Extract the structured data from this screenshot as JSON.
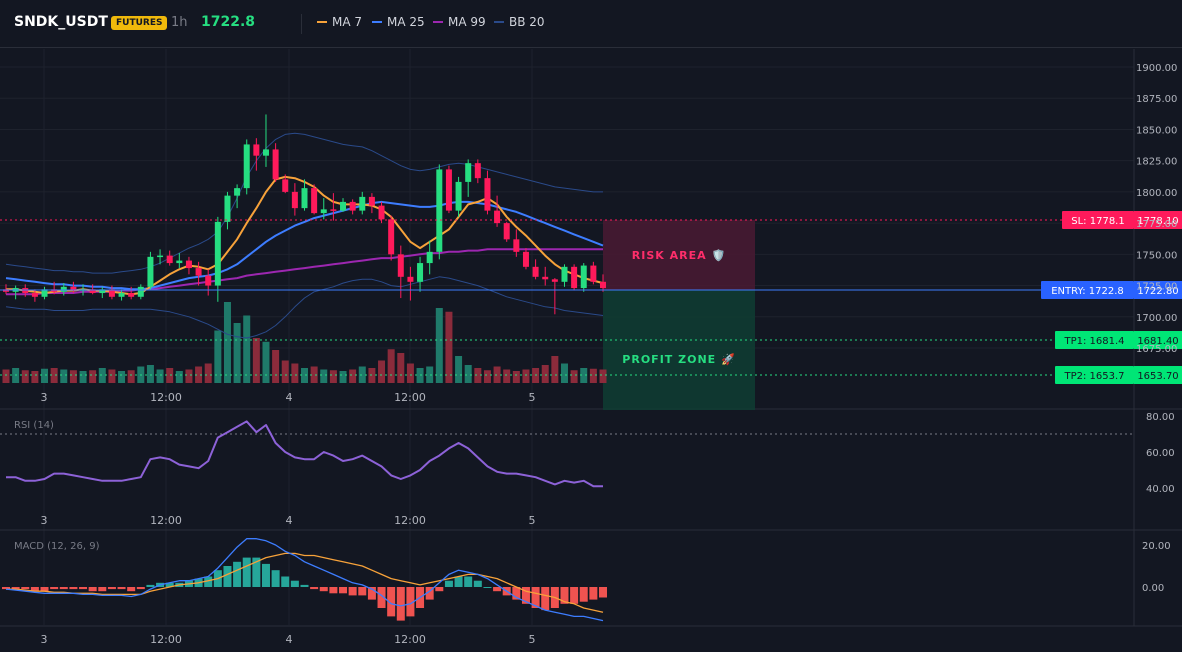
{
  "header": {
    "symbol": "SNDK_USDT",
    "badge": "FUTURES",
    "timeframe": "1h",
    "last_price": "1722.8",
    "legend": [
      {
        "label": "MA 7",
        "color": "#f7a23a"
      },
      {
        "label": "MA 25",
        "color": "#3d7dff"
      },
      {
        "label": "MA 99",
        "color": "#9c27b0"
      },
      {
        "label": "BB 20",
        "color": "#2a4a8a"
      }
    ]
  },
  "colors": {
    "up": "#26de81",
    "down": "#ff1a5b",
    "vol_up": "#1f7a6a",
    "vol_down": "#8b2b3b",
    "bb": "#2a4a8a",
    "rsi": "#8d62d8",
    "macd": "#3d7dff",
    "signal": "#f7a23a",
    "hist_up": "#26a69a",
    "hist_down": "#ef5350"
  },
  "chart_data": [
    {
      "type": "candlestick",
      "price_axis": {
        "ticks": [
          "1900.00",
          "1875.00",
          "1850.00",
          "1825.00",
          "1800.00",
          "1775.00",
          "1750.00",
          "1725.00",
          "1700.00",
          "1675.00"
        ],
        "range": [
          1655,
          1910
        ]
      },
      "x_labels": [
        "3",
        "12:00",
        "4",
        "12:00",
        "5"
      ],
      "candles": [
        [
          1722,
          1726,
          1718,
          1720
        ],
        [
          1720,
          1725,
          1714,
          1723
        ],
        [
          1723,
          1726,
          1716,
          1719
        ],
        [
          1719,
          1722,
          1712,
          1716
        ],
        [
          1716,
          1724,
          1714,
          1722
        ],
        [
          1722,
          1728,
          1718,
          1720
        ],
        [
          1720,
          1727,
          1717,
          1724
        ],
        [
          1724,
          1728,
          1719,
          1721
        ],
        [
          1721,
          1726,
          1717,
          1722
        ],
        [
          1722,
          1726,
          1718,
          1719
        ],
        [
          1719,
          1724,
          1715,
          1722
        ],
        [
          1722,
          1725,
          1714,
          1716
        ],
        [
          1716,
          1722,
          1713,
          1719
        ],
        [
          1719,
          1724,
          1714,
          1716
        ],
        [
          1716,
          1726,
          1714,
          1724
        ],
        [
          1724,
          1752,
          1722,
          1748
        ],
        [
          1748,
          1754,
          1742,
          1749
        ],
        [
          1749,
          1753,
          1741,
          1743
        ],
        [
          1743,
          1751,
          1739,
          1745
        ],
        [
          1745,
          1748,
          1734,
          1739
        ],
        [
          1739,
          1744,
          1725,
          1733
        ],
        [
          1733,
          1738,
          1717,
          1725
        ],
        [
          1725,
          1780,
          1712,
          1776
        ],
        [
          1776,
          1800,
          1770,
          1797
        ],
        [
          1797,
          1806,
          1787,
          1803
        ],
        [
          1803,
          1842,
          1798,
          1838
        ],
        [
          1838,
          1843,
          1817,
          1829
        ],
        [
          1829,
          1862,
          1820,
          1834
        ],
        [
          1834,
          1839,
          1808,
          1810
        ],
        [
          1810,
          1814,
          1799,
          1800
        ],
        [
          1800,
          1807,
          1781,
          1787
        ],
        [
          1787,
          1810,
          1785,
          1803
        ],
        [
          1803,
          1806,
          1782,
          1783
        ],
        [
          1783,
          1795,
          1778,
          1786
        ],
        [
          1786,
          1799,
          1777,
          1785
        ],
        [
          1785,
          1795,
          1784,
          1792
        ],
        [
          1792,
          1794,
          1782,
          1785
        ],
        [
          1785,
          1800,
          1782,
          1796
        ],
        [
          1796,
          1799,
          1783,
          1789
        ],
        [
          1789,
          1792,
          1775,
          1778
        ],
        [
          1778,
          1781,
          1745,
          1750
        ],
        [
          1750,
          1757,
          1715,
          1732
        ],
        [
          1732,
          1740,
          1713,
          1728
        ],
        [
          1728,
          1748,
          1720,
          1743
        ],
        [
          1743,
          1761,
          1734,
          1752
        ],
        [
          1752,
          1822,
          1746,
          1818
        ],
        [
          1818,
          1821,
          1783,
          1785
        ],
        [
          1785,
          1812,
          1780,
          1808
        ],
        [
          1808,
          1826,
          1796,
          1823
        ],
        [
          1823,
          1826,
          1807,
          1811
        ],
        [
          1811,
          1817,
          1782,
          1785
        ],
        [
          1785,
          1797,
          1772,
          1775
        ],
        [
          1775,
          1776,
          1760,
          1762
        ],
        [
          1762,
          1770,
          1748,
          1752
        ],
        [
          1752,
          1755,
          1738,
          1740
        ],
        [
          1740,
          1746,
          1730,
          1732
        ],
        [
          1732,
          1740,
          1725,
          1730
        ],
        [
          1730,
          1731,
          1702,
          1728
        ],
        [
          1728,
          1742,
          1724,
          1740
        ],
        [
          1740,
          1742,
          1721,
          1723
        ],
        [
          1723,
          1743,
          1720,
          1741
        ],
        [
          1741,
          1744,
          1726,
          1728
        ],
        [
          1728,
          1734,
          1720,
          1723
        ]
      ],
      "ma7": [
        1722,
        1722,
        1721,
        1720,
        1719,
        1720,
        1721,
        1721,
        1722,
        1721,
        1721,
        1720,
        1719,
        1718,
        1719,
        1724,
        1729,
        1734,
        1738,
        1741,
        1740,
        1738,
        1742,
        1752,
        1762,
        1775,
        1787,
        1800,
        1810,
        1812,
        1811,
        1808,
        1804,
        1797,
        1792,
        1790,
        1790,
        1790,
        1789,
        1786,
        1780,
        1770,
        1760,
        1755,
        1760,
        1765,
        1770,
        1780,
        1790,
        1792,
        1795,
        1790,
        1780,
        1772,
        1765,
        1757,
        1749,
        1742,
        1737,
        1734,
        1731,
        1729,
        1727
      ],
      "ma25": [
        1731,
        1730,
        1729,
        1728,
        1727,
        1726,
        1726,
        1725,
        1725,
        1724,
        1724,
        1723,
        1723,
        1722,
        1722,
        1723,
        1725,
        1727,
        1729,
        1731,
        1732,
        1733,
        1735,
        1738,
        1742,
        1748,
        1754,
        1760,
        1765,
        1769,
        1773,
        1776,
        1779,
        1781,
        1783,
        1785,
        1787,
        1789,
        1791,
        1792,
        1791,
        1790,
        1789,
        1788,
        1788,
        1789,
        1791,
        1792,
        1792,
        1791,
        1790,
        1788,
        1786,
        1784,
        1781,
        1778,
        1775,
        1772,
        1769,
        1766,
        1763,
        1760,
        1757
      ],
      "ma99": [
        1718,
        1718,
        1718,
        1718,
        1719,
        1719,
        1719,
        1719,
        1720,
        1720,
        1720,
        1720,
        1721,
        1721,
        1722,
        1722,
        1723,
        1724,
        1725,
        1726,
        1727,
        1728,
        1729,
        1730,
        1731,
        1733,
        1734,
        1735,
        1736,
        1737,
        1738,
        1739,
        1740,
        1741,
        1742,
        1743,
        1744,
        1745,
        1746,
        1747,
        1747,
        1748,
        1749,
        1750,
        1751,
        1751,
        1752,
        1752,
        1753,
        1753,
        1754,
        1754,
        1754,
        1754,
        1754,
        1754,
        1754,
        1754,
        1754,
        1754,
        1754,
        1754,
        1754
      ],
      "bb_upper": [
        1742,
        1741,
        1740,
        1739,
        1738,
        1737,
        1737,
        1736,
        1736,
        1735,
        1735,
        1735,
        1736,
        1737,
        1738,
        1740,
        1743,
        1747,
        1751,
        1755,
        1758,
        1762,
        1768,
        1780,
        1795,
        1812,
        1825,
        1835,
        1842,
        1846,
        1847,
        1846,
        1844,
        1842,
        1840,
        1838,
        1837,
        1836,
        1833,
        1829,
        1825,
        1821,
        1818,
        1817,
        1818,
        1820,
        1822,
        1823,
        1822,
        1820,
        1818,
        1816,
        1814,
        1812,
        1810,
        1808,
        1806,
        1804,
        1803,
        1802,
        1801,
        1800,
        1800
      ],
      "bb_lower": [
        1708,
        1707,
        1706,
        1706,
        1706,
        1705,
        1705,
        1705,
        1705,
        1706,
        1706,
        1706,
        1706,
        1706,
        1706,
        1706,
        1705,
        1704,
        1702,
        1700,
        1697,
        1694,
        1690,
        1686,
        1684,
        1683,
        1685,
        1688,
        1693,
        1700,
        1708,
        1715,
        1720,
        1722,
        1724,
        1727,
        1729,
        1730,
        1730,
        1728,
        1725,
        1724,
        1726,
        1728,
        1730,
        1732,
        1731,
        1729,
        1727,
        1725,
        1722,
        1719,
        1716,
        1714,
        1712,
        1710,
        1708,
        1707,
        1705,
        1704,
        1703,
        1702,
        1701
      ],
      "volume": [
        18,
        20,
        17,
        16,
        19,
        20,
        18,
        17,
        16,
        17,
        20,
        18,
        16,
        17,
        22,
        24,
        18,
        20,
        16,
        18,
        22,
        26,
        70,
        108,
        80,
        90,
        60,
        55,
        44,
        30,
        26,
        20,
        22,
        18,
        17,
        16,
        18,
        22,
        20,
        30,
        45,
        40,
        26,
        20,
        22,
        100,
        95,
        36,
        24,
        20,
        17,
        22,
        18,
        16,
        18,
        20,
        24,
        36,
        26,
        17,
        20,
        19,
        18
      ],
      "levels": {
        "sl": {
          "value": 1778.1,
          "tag": "SL: 1778.1",
          "axis": "1778.10"
        },
        "entry": {
          "value": 1722.8,
          "tag": "ENTRY: 1722.8",
          "axis": "1722.80"
        },
        "tp1": {
          "value": 1681.4,
          "tag": "TP1: 1681.4",
          "axis": "1681.40"
        },
        "tp2": {
          "value": 1653.7,
          "tag": "TP2: 1653.7",
          "axis": "1653.70"
        }
      },
      "zones": {
        "risk_label": "RISK AREA 🛡️",
        "profit_label": "PROFIT ZONE 🚀"
      }
    },
    {
      "type": "line",
      "title": "RSI (14)",
      "y_ticks": [
        "80.00",
        "60.00",
        "40.00"
      ],
      "range": [
        30,
        85
      ],
      "ref_line": 70,
      "values": [
        46,
        46,
        44,
        44,
        45,
        48,
        48,
        47,
        46,
        45,
        44,
        44,
        44,
        45,
        46,
        56,
        57,
        56,
        53,
        52,
        51,
        55,
        68,
        71,
        74,
        77,
        71,
        75,
        65,
        60,
        57,
        56,
        56,
        60,
        58,
        55,
        56,
        58,
        55,
        52,
        47,
        45,
        47,
        50,
        55,
        58,
        62,
        65,
        62,
        57,
        52,
        49,
        48,
        48,
        47,
        46,
        44,
        42,
        44,
        43,
        44,
        41,
        41
      ]
    },
    {
      "type": "bar_line",
      "title": "MACD (12, 26, 9)",
      "y_ticks": [
        "20.00",
        "0.00"
      ],
      "range": [
        -18,
        25
      ],
      "macd": [
        -1,
        -1.5,
        -2,
        -2.5,
        -3,
        -3,
        -3,
        -3,
        -3.5,
        -3.5,
        -4,
        -4,
        -4,
        -4.5,
        -3.5,
        -1,
        1,
        2,
        3,
        3,
        4,
        5,
        9,
        14,
        19,
        23,
        23,
        22,
        20,
        17,
        15,
        12,
        10,
        8,
        6,
        4,
        2,
        1,
        -1,
        -4,
        -8,
        -9,
        -8,
        -5,
        -2,
        2,
        6,
        8,
        7,
        6,
        4,
        1,
        -2,
        -5,
        -7,
        -9,
        -11,
        -12,
        -13,
        -14,
        -14,
        -15,
        -16
      ],
      "signal": [
        -1,
        -1,
        -1.5,
        -2,
        -2,
        -2.5,
        -2.5,
        -3,
        -3,
        -3,
        -3.5,
        -3.5,
        -3.5,
        -3.5,
        -3.5,
        -2,
        -1,
        0,
        1,
        1.5,
        2,
        3,
        4,
        6,
        8,
        10,
        12,
        14,
        15,
        16,
        16,
        15,
        15,
        14,
        13,
        12,
        11,
        10,
        8,
        6,
        4,
        3,
        2,
        1,
        2,
        3,
        4,
        5,
        6,
        6,
        5,
        4,
        2,
        0,
        -2,
        -3,
        -4,
        -5,
        -7,
        -8,
        -10,
        -11,
        -12
      ],
      "hist": [
        -1,
        -1,
        -1,
        -2,
        -2,
        -1,
        -1,
        -1,
        -1,
        -2,
        -2,
        -1,
        -1,
        -2,
        -1,
        1,
        2,
        2,
        2,
        3,
        4,
        5,
        8,
        10,
        12,
        14,
        14,
        11,
        8,
        5,
        3,
        1,
        -1,
        -2,
        -3,
        -3,
        -4,
        -4,
        -6,
        -10,
        -14,
        -16,
        -14,
        -10,
        -6,
        -2,
        3,
        5,
        5,
        3,
        0,
        -2,
        -4,
        -6,
        -8,
        -10,
        -11,
        -10,
        -8,
        -8,
        -7,
        -6,
        -5
      ]
    }
  ]
}
